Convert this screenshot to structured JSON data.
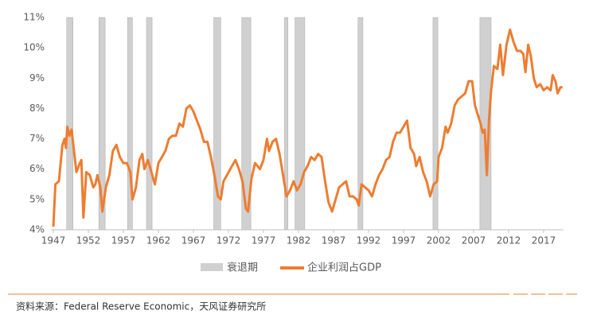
{
  "chart_data": {
    "type": "line",
    "x": [
      1947.0,
      1947.3,
      1947.8,
      1948.3,
      1948.6,
      1948.8,
      1949.0,
      1949.3,
      1949.6,
      1950.0,
      1950.3,
      1950.8,
      1951.0,
      1951.3,
      1951.7,
      1952.2,
      1952.7,
      1953.0,
      1953.3,
      1953.7,
      1954.0,
      1954.5,
      1955.0,
      1955.5,
      1956.0,
      1956.5,
      1957.0,
      1957.5,
      1958.0,
      1958.3,
      1958.8,
      1959.3,
      1959.7,
      1960.0,
      1960.5,
      1961.0,
      1961.5,
      1962.0,
      1962.5,
      1963.0,
      1963.5,
      1964.0,
      1964.5,
      1965.0,
      1965.5,
      1966.0,
      1966.5,
      1967.0,
      1967.5,
      1968.0,
      1968.5,
      1969.0,
      1969.5,
      1970.0,
      1970.5,
      1970.9,
      1971.3,
      1971.8,
      1972.5,
      1973.0,
      1973.5,
      1974.0,
      1974.5,
      1974.8,
      1975.3,
      1975.8,
      1976.5,
      1977.0,
      1977.5,
      1977.8,
      1978.3,
      1978.8,
      1979.3,
      1979.8,
      1980.3,
      1980.8,
      1981.3,
      1981.8,
      1982.3,
      1982.8,
      1983.3,
      1983.8,
      1984.3,
      1984.8,
      1985.3,
      1985.8,
      1986.3,
      1986.8,
      1987.3,
      1987.8,
      1988.3,
      1988.8,
      1989.3,
      1989.8,
      1990.3,
      1990.6,
      1991.0,
      1991.5,
      1992.0,
      1992.5,
      1993.0,
      1993.5,
      1994.0,
      1994.5,
      1995.0,
      1995.5,
      1996.0,
      1996.5,
      1997.0,
      1997.5,
      1998.0,
      1998.5,
      1998.8,
      1999.3,
      1999.8,
      2000.3,
      2000.8,
      2001.3,
      2001.8,
      2002.0,
      2002.5,
      2003.0,
      2003.3,
      2003.8,
      2004.3,
      2004.8,
      2005.3,
      2005.8,
      2006.3,
      2006.8,
      2007.2,
      2007.6,
      2008.0,
      2008.3,
      2008.6,
      2008.9,
      2009.2,
      2009.5,
      2009.9,
      2010.4,
      2010.8,
      2011.2,
      2011.7,
      2012.2,
      2012.7,
      2013.2,
      2013.7,
      2014.1,
      2014.4,
      2014.8,
      2015.2,
      2015.6,
      2016.0,
      2016.5,
      2017.0,
      2017.5,
      2018.0,
      2018.3,
      2018.7,
      2019.0,
      2019.4,
      2019.7
    ],
    "series": [
      {
        "name": "企业利润占GDP",
        "color": "#ed7d31",
        "values": [
          4.1,
          5.5,
          5.6,
          6.8,
          7.0,
          6.7,
          7.4,
          7.1,
          7.3,
          6.5,
          5.9,
          6.2,
          6.3,
          4.4,
          5.9,
          5.8,
          5.4,
          5.5,
          5.8,
          5.4,
          4.6,
          5.4,
          5.8,
          6.6,
          6.8,
          6.4,
          6.2,
          6.2,
          5.9,
          5.0,
          5.4,
          6.3,
          6.5,
          6.0,
          6.3,
          5.9,
          5.5,
          6.2,
          6.4,
          6.6,
          7.0,
          7.1,
          7.1,
          7.5,
          7.4,
          8.0,
          8.1,
          7.9,
          7.6,
          7.3,
          6.9,
          6.9,
          6.4,
          5.8,
          5.1,
          5.0,
          5.6,
          5.8,
          6.1,
          6.3,
          6.0,
          5.6,
          4.7,
          4.6,
          5.7,
          6.2,
          6.0,
          6.3,
          7.0,
          6.6,
          6.9,
          7.0,
          6.5,
          5.8,
          5.1,
          5.3,
          5.6,
          5.3,
          5.5,
          5.9,
          6.1,
          6.4,
          6.3,
          6.5,
          6.4,
          5.6,
          4.9,
          4.6,
          5.0,
          5.4,
          5.5,
          5.6,
          5.1,
          5.1,
          5.0,
          4.8,
          5.5,
          5.4,
          5.3,
          5.1,
          5.5,
          5.8,
          6.0,
          6.3,
          6.4,
          6.9,
          7.2,
          7.2,
          7.4,
          7.6,
          6.7,
          6.5,
          6.1,
          6.4,
          5.9,
          5.6,
          5.1,
          5.5,
          5.6,
          6.4,
          6.7,
          7.4,
          7.2,
          7.5,
          8.1,
          8.3,
          8.4,
          8.5,
          8.9,
          8.9,
          8.1,
          7.8,
          7.5,
          7.2,
          7.3,
          5.8,
          7.6,
          8.6,
          9.4,
          9.3,
          10.1,
          9.1,
          10.1,
          10.6,
          10.2,
          9.9,
          9.9,
          9.8,
          9.2,
          10.1,
          9.7,
          9.0,
          8.7,
          8.8,
          8.6,
          8.7,
          8.6,
          9.1,
          8.9,
          8.5,
          8.7,
          8.7
        ]
      }
    ],
    "shaded_regions": {
      "name": "衰退期",
      "color": "#d0d0d0",
      "ranges": [
        [
          1948.9,
          1949.8
        ],
        [
          1953.5,
          1954.4
        ],
        [
          1957.6,
          1958.3
        ],
        [
          1960.3,
          1961.1
        ],
        [
          1969.9,
          1970.9
        ],
        [
          1973.9,
          1975.2
        ],
        [
          1980.0,
          1980.5
        ],
        [
          1981.5,
          1982.9
        ],
        [
          1990.5,
          1991.2
        ],
        [
          2001.2,
          2001.9
        ],
        [
          2007.9,
          2009.5
        ]
      ]
    },
    "xlim": [
      1947,
      2019.8
    ],
    "xticks": [
      1947,
      1952,
      1957,
      1962,
      1967,
      1972,
      1977,
      1982,
      1987,
      1992,
      1997,
      2002,
      2007,
      2012,
      2017
    ],
    "ylim": [
      4,
      11
    ],
    "yticks": [
      {
        "value": 4,
        "label": "4%"
      },
      {
        "value": 5,
        "label": "5%"
      },
      {
        "value": 6,
        "label": "6%"
      },
      {
        "value": 7,
        "label": "7%"
      },
      {
        "value": 8,
        "label": "8%"
      },
      {
        "value": 9,
        "label": "9%"
      },
      {
        "value": 10,
        "label": "10%"
      },
      {
        "value": 11,
        "label": "11%"
      }
    ],
    "grid": false,
    "source": "资料来源：Federal Reserve Economic，天风证券研究所"
  }
}
